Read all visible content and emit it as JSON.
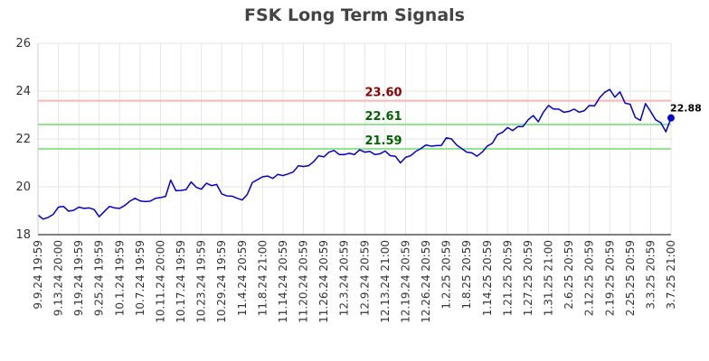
{
  "chart_data": {
    "type": "line",
    "title": "FSK Long Term Signals",
    "xlabel": "",
    "ylabel": "",
    "ylim": [
      18,
      26
    ],
    "yticks": [
      18,
      20,
      22,
      24,
      26
    ],
    "grid": true,
    "x_tick_labels": [
      "9.9.24 19:59",
      "9.13.24 20:00",
      "9.19.24 19:59",
      "9.25.24 19:59",
      "10.1.24 19:59",
      "10.7.24 19:59",
      "10.11.24 20:00",
      "10.17.24 19:59",
      "10.23.24 19:59",
      "10.29.24 19:59",
      "11.4.24 20:59",
      "11.8.24 21:00",
      "11.14.24 20:59",
      "11.20.24 20:59",
      "11.26.24 20:59",
      "12.3.24 20:59",
      "12.9.24 20:59",
      "12.13.24 21:00",
      "12.19.24 20:59",
      "12.26.24 20:59",
      "1.2.25 20:59",
      "1.8.25 20:59",
      "1.14.25 20:59",
      "1.21.25 20:59",
      "1.27.25 20:59",
      "1.31.25 21:00",
      "2.6.25 20:59",
      "2.12.25 20:59",
      "2.19.25 20:59",
      "2.25.25 20:59",
      "3.3.25 20:59",
      "3.7.25 21:00"
    ],
    "series": [
      {
        "color": "#0000cc",
        "values": [
          18.82,
          18.65,
          18.72,
          18.85,
          19.15,
          19.18,
          18.98,
          19.02,
          19.15,
          19.1,
          19.12,
          19.05,
          18.75,
          18.97,
          19.18,
          19.12,
          19.1,
          19.22,
          19.4,
          19.52,
          19.41,
          19.38,
          19.4,
          19.52,
          19.55,
          19.6,
          20.28,
          19.84,
          19.85,
          19.88,
          20.2,
          19.98,
          19.9,
          20.15,
          20.05,
          20.1,
          19.7,
          19.62,
          19.61,
          19.52,
          19.45,
          19.68,
          20.18,
          20.3,
          20.42,
          20.45,
          20.35,
          20.52,
          20.47,
          20.54,
          20.62,
          20.88,
          20.85,
          20.88,
          21.05,
          21.3,
          21.25,
          21.45,
          21.52,
          21.35,
          21.35,
          21.4,
          21.35,
          21.55,
          21.45,
          21.48,
          21.35,
          21.38,
          21.5,
          21.3,
          21.28,
          21.0,
          21.23,
          21.3,
          21.48,
          21.6,
          21.75,
          21.7,
          21.72,
          21.73,
          22.05,
          22.0,
          21.75,
          21.6,
          21.45,
          21.42,
          21.28,
          21.45,
          21.7,
          21.82,
          22.18,
          22.28,
          22.48,
          22.35,
          22.52,
          22.52,
          22.8,
          22.98,
          22.72,
          23.12,
          23.4,
          23.25,
          23.25,
          23.12,
          23.15,
          23.25,
          23.12,
          23.18,
          23.4,
          23.38,
          23.72,
          23.95,
          24.07,
          23.75,
          23.97,
          23.5,
          23.45,
          22.9,
          22.78,
          23.48,
          23.15,
          22.8,
          22.68,
          22.3,
          22.88
        ]
      }
    ],
    "horizontal_lines": [
      {
        "value": 23.6,
        "label": "23.60",
        "line_color": "#ffb3b3",
        "label_color": "#8b0000"
      },
      {
        "value": 22.61,
        "label": "22.61",
        "line_color": "#8fe08f",
        "label_color": "#006400"
      },
      {
        "value": 21.59,
        "label": "21.59",
        "line_color": "#8fe08f",
        "label_color": "#006400"
      }
    ],
    "last_value_label": "22.88"
  }
}
